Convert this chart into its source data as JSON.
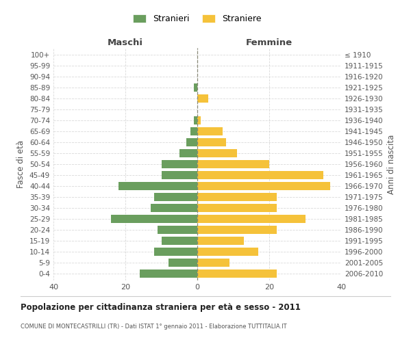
{
  "age_groups": [
    "0-4",
    "5-9",
    "10-14",
    "15-19",
    "20-24",
    "25-29",
    "30-34",
    "35-39",
    "40-44",
    "45-49",
    "50-54",
    "55-59",
    "60-64",
    "65-69",
    "70-74",
    "75-79",
    "80-84",
    "85-89",
    "90-94",
    "95-99",
    "100+"
  ],
  "birth_years": [
    "2006-2010",
    "2001-2005",
    "1996-2000",
    "1991-1995",
    "1986-1990",
    "1981-1985",
    "1976-1980",
    "1971-1975",
    "1966-1970",
    "1961-1965",
    "1956-1960",
    "1951-1955",
    "1946-1950",
    "1941-1945",
    "1936-1940",
    "1931-1935",
    "1926-1930",
    "1921-1925",
    "1916-1920",
    "1911-1915",
    "≤ 1910"
  ],
  "maschi": [
    16,
    8,
    12,
    10,
    11,
    24,
    13,
    12,
    22,
    10,
    10,
    5,
    3,
    2,
    1,
    0,
    0,
    1,
    0,
    0,
    0
  ],
  "femmine": [
    22,
    9,
    17,
    13,
    22,
    30,
    22,
    22,
    37,
    35,
    20,
    11,
    8,
    7,
    1,
    0,
    3,
    0,
    0,
    0,
    0
  ],
  "color_maschi": "#6a9e5e",
  "color_femmine": "#f5c23a",
  "title": "Popolazione per cittadinanza straniera per età e sesso - 2011",
  "subtitle": "COMUNE DI MONTECASTRILLI (TR) - Dati ISTAT 1° gennaio 2011 - Elaborazione TUTTITALIA.IT",
  "xlabel_left": "Maschi",
  "xlabel_right": "Femmine",
  "ylabel_left": "Fasce di età",
  "ylabel_right": "Anni di nascita",
  "legend_maschi": "Stranieri",
  "legend_femmine": "Straniere",
  "xlim": 40,
  "background_color": "#ffffff",
  "grid_color": "#d0d0d0"
}
